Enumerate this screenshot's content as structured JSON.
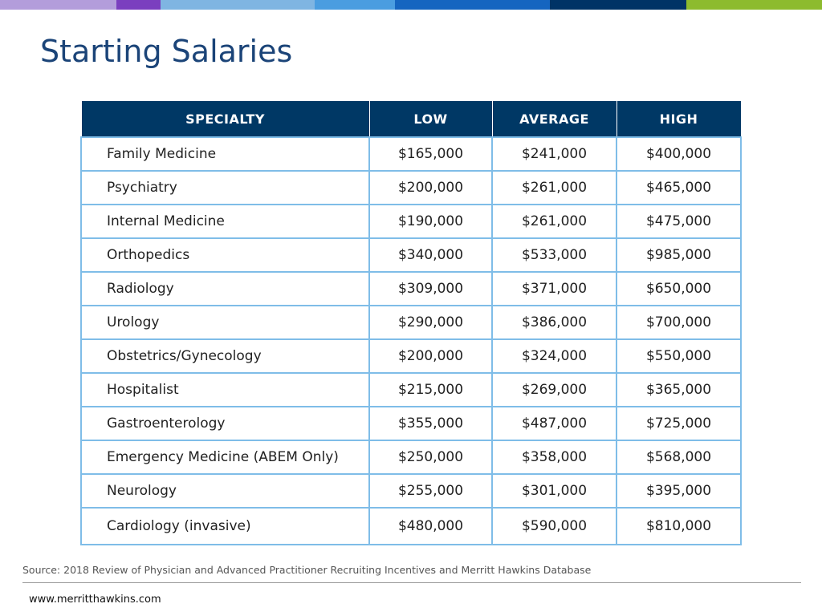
{
  "header": {
    "title": "Starting Salaries"
  },
  "table": {
    "columns": [
      "SPECIALTY",
      "LOW",
      "AVERAGE",
      "HIGH"
    ],
    "rows": [
      [
        "Family Medicine",
        "$165,000",
        "$241,000",
        "$400,000"
      ],
      [
        "Psychiatry",
        "$200,000",
        "$261,000",
        "$465,000"
      ],
      [
        "Internal Medicine",
        "$190,000",
        "$261,000",
        "$475,000"
      ],
      [
        "Orthopedics",
        "$340,000",
        "$533,000",
        "$985,000"
      ],
      [
        "Radiology",
        "$309,000",
        "$371,000",
        "$650,000"
      ],
      [
        "Urology",
        "$290,000",
        "$386,000",
        "$700,000"
      ],
      [
        "Obstetrics/Gynecology",
        "$200,000",
        "$324,000",
        "$550,000"
      ],
      [
        "Hospitalist",
        "$215,000",
        "$269,000",
        "$365,000"
      ],
      [
        "Gastroenterology",
        "$355,000",
        "$487,000",
        "$725,000"
      ],
      [
        "Emergency Medicine (ABEM Only)",
        "$250,000",
        "$358,000",
        "$568,000"
      ],
      [
        "Neurology",
        "$255,000",
        "$301,000",
        "$395,000"
      ],
      [
        "Cardiology (invasive)",
        "$480,000",
        "$590,000",
        "$810,000"
      ]
    ]
  },
  "footer": {
    "source": "Source: 2018 Review of Physician and Advanced Practitioner Recruiting Incentives and Merritt Hawkins Database",
    "url": "www.merritthawkins.com"
  }
}
